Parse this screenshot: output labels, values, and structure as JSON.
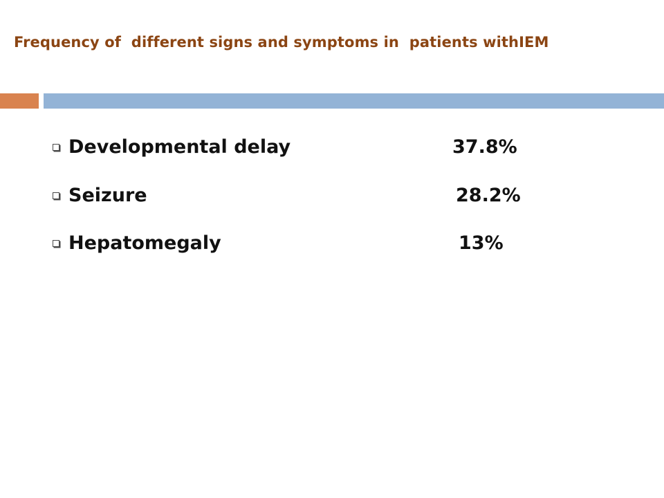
{
  "slide": {
    "title": "Frequency of  different signs and symptoms in  patients withIEM",
    "accent_colors": {
      "title_text": "#8B4513",
      "bar_orange": "#D9834F",
      "bar_blue": "#93B3D6"
    }
  },
  "items": [
    {
      "label": "Developmental delay",
      "value": "37.8%",
      "icon": "hollow-square-bullet-icon"
    },
    {
      "label": "Seizure",
      "value": "28.2%",
      "icon": "hollow-square-bullet-icon"
    },
    {
      "label": "Hepatomegaly",
      "value": "13%",
      "icon": "hollow-square-bullet-icon"
    }
  ]
}
